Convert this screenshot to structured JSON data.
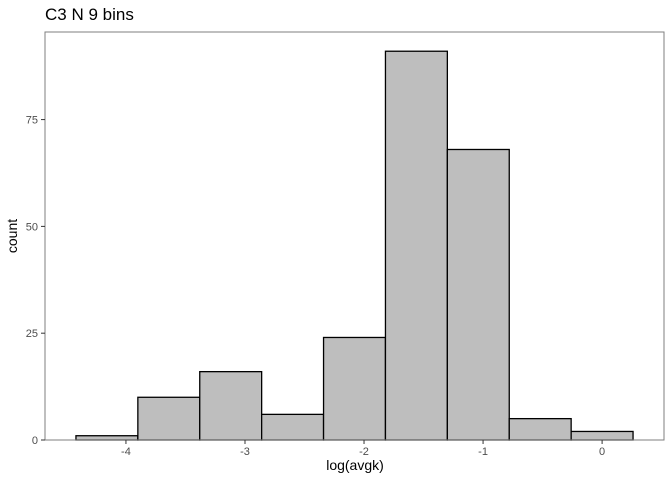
{
  "chart_data": {
    "type": "bar",
    "title": "C3 N 9 bins",
    "xlabel": "log(avgk)",
    "ylabel": "count",
    "bins": [
      {
        "x0": -4.42,
        "x1": -3.9,
        "count": 1
      },
      {
        "x0": -3.9,
        "x1": -3.38,
        "count": 10
      },
      {
        "x0": -3.38,
        "x1": -2.86,
        "count": 16
      },
      {
        "x0": -2.86,
        "x1": -2.34,
        "count": 6
      },
      {
        "x0": -2.34,
        "x1": -1.82,
        "count": 24
      },
      {
        "x0": -1.82,
        "x1": -1.3,
        "count": 91
      },
      {
        "x0": -1.3,
        "x1": -0.78,
        "count": 68
      },
      {
        "x0": -0.78,
        "x1": -0.26,
        "count": 5
      },
      {
        "x0": -0.26,
        "x1": 0.26,
        "count": 2
      }
    ],
    "xlim": [
      -4.68,
      0.52
    ],
    "ylim": [
      0,
      95.5
    ],
    "x_ticks": [
      -4,
      -3,
      -2,
      -1,
      0
    ],
    "x_tick_labels": [
      "-4",
      "-3",
      "-2",
      "-1",
      "0"
    ],
    "y_ticks": [
      0,
      25,
      50,
      75
    ],
    "y_tick_labels": [
      "0",
      "25",
      "50",
      "75"
    ],
    "grid": false,
    "bar_fill": "#bebebe",
    "bar_stroke": "#000000",
    "panel_border": "#7f7f7f",
    "axis_tick_color": "#333333"
  }
}
